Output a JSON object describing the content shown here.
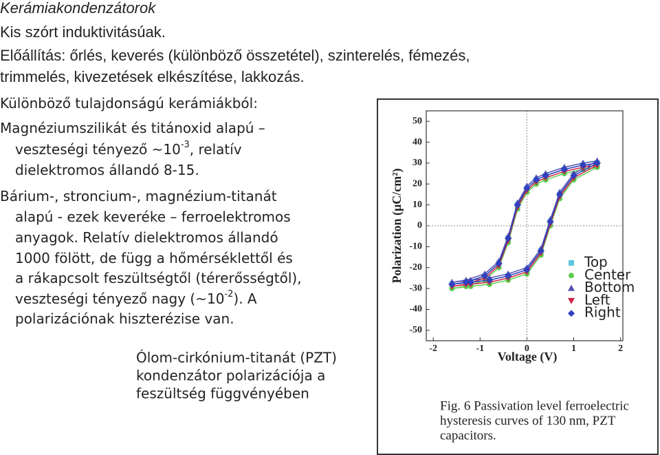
{
  "title": "Kerámiakondenzátorok",
  "lines": [
    {
      "text": "Kis szórt induktivitásúak."
    },
    {
      "text": "Előállítás: őrlés, keverés (különböző összetétel), szinterelés, fémezés,"
    },
    {
      "text": "trimmelés, kivezetések elkészítése, lakkozás."
    },
    {
      "text": "Különböző tulajdonságú kerámiákból:"
    },
    {
      "text": "Magnéziumszilikát és titánoxid alapú –"
    },
    {
      "text": "veszteségi tényező ~10",
      "sup": "-3",
      "tail": ", relatív"
    },
    {
      "text": "dielektromos állandó 8-15."
    },
    {
      "text": "Bárium-, stroncium-, magnézium-titanát"
    },
    {
      "text": "alapú - ezek keveréke – ferroelektromos"
    },
    {
      "text": "anyagok. Relatív dielektromos állandó"
    },
    {
      "text": "1000 fölött, de függ a hőmérséklettől és"
    },
    {
      "text": "a rákapcsolt feszültségtől (térerősségtől),"
    },
    {
      "text": "veszteségi tényező nagy (~10",
      "sup": "-2",
      "tail": "). A"
    },
    {
      "text": "polarizációnak hiszterézise van."
    }
  ],
  "figure_note": [
    "Ólom-cirkónium-titanát (PZT)",
    "kondenzátor polarizációja a",
    "feszültség függvényében"
  ],
  "chart_data": {
    "type": "line",
    "x_label": "Voltage (V)",
    "y_label": "Polarization (μC/cm²)",
    "caption": [
      "Fig. 6 Passivation level ferroelectric",
      "hysteresis curves of 130 nm, PZT",
      "capacitors."
    ],
    "xlim": [
      -2.15,
      2.05
    ],
    "ylim": [
      -55,
      55
    ],
    "xticks": [
      -2,
      -1,
      0,
      1,
      2
    ],
    "yticks": [
      -50,
      -40,
      -30,
      -20,
      -10,
      0,
      10,
      20,
      30,
      40,
      50
    ],
    "x": [
      1.5,
      1.2,
      0.8,
      0.4,
      0.2,
      0,
      -0.2,
      -0.4,
      -0.6,
      -0.9,
      -1.3,
      -1.6,
      -1.2,
      -0.8,
      -0.4,
      0,
      0.3,
      0.5,
      0.7,
      1.0,
      1.5
    ],
    "series": [
      {
        "name": "Top",
        "color": "#5cc6e0",
        "marker": "square",
        "values": [
          30,
          29,
          27,
          24,
          22,
          18,
          10,
          -6,
          -18,
          -24,
          -27,
          -28,
          -27,
          -26,
          -24,
          -21,
          -12,
          2,
          15,
          24,
          30
        ]
      },
      {
        "name": "Center",
        "color": "#5ccc50",
        "marker": "circle",
        "values": [
          28,
          27,
          25,
          22,
          20,
          16,
          8,
          -8,
          -20,
          -26,
          -29,
          -30,
          -29,
          -28,
          -26,
          -23,
          -14,
          0,
          13,
          22,
          28
        ]
      },
      {
        "name": "Bottom",
        "color": "#5050b0",
        "marker": "triangle-up",
        "values": [
          31,
          30,
          28,
          25,
          23,
          19,
          11,
          -5,
          -17,
          -23,
          -26,
          -27,
          -26,
          -25,
          -23,
          -20,
          -11,
          3,
          16,
          25,
          31
        ]
      },
      {
        "name": "Left",
        "color": "#d02040",
        "marker": "triangle-down",
        "values": [
          29,
          28,
          26,
          23,
          21,
          17,
          9,
          -7,
          -19,
          -25,
          -28,
          -29,
          -28,
          -27,
          -25,
          -22,
          -13,
          1,
          14,
          23,
          29
        ]
      },
      {
        "name": "Right",
        "color": "#3040c0",
        "marker": "diamond",
        "values": [
          30,
          29,
          27,
          24,
          22,
          18,
          10,
          -6,
          -18,
          -24,
          -27,
          -28,
          -27,
          -26,
          -24,
          -21,
          -12,
          2,
          15,
          24,
          30
        ]
      }
    ]
  }
}
